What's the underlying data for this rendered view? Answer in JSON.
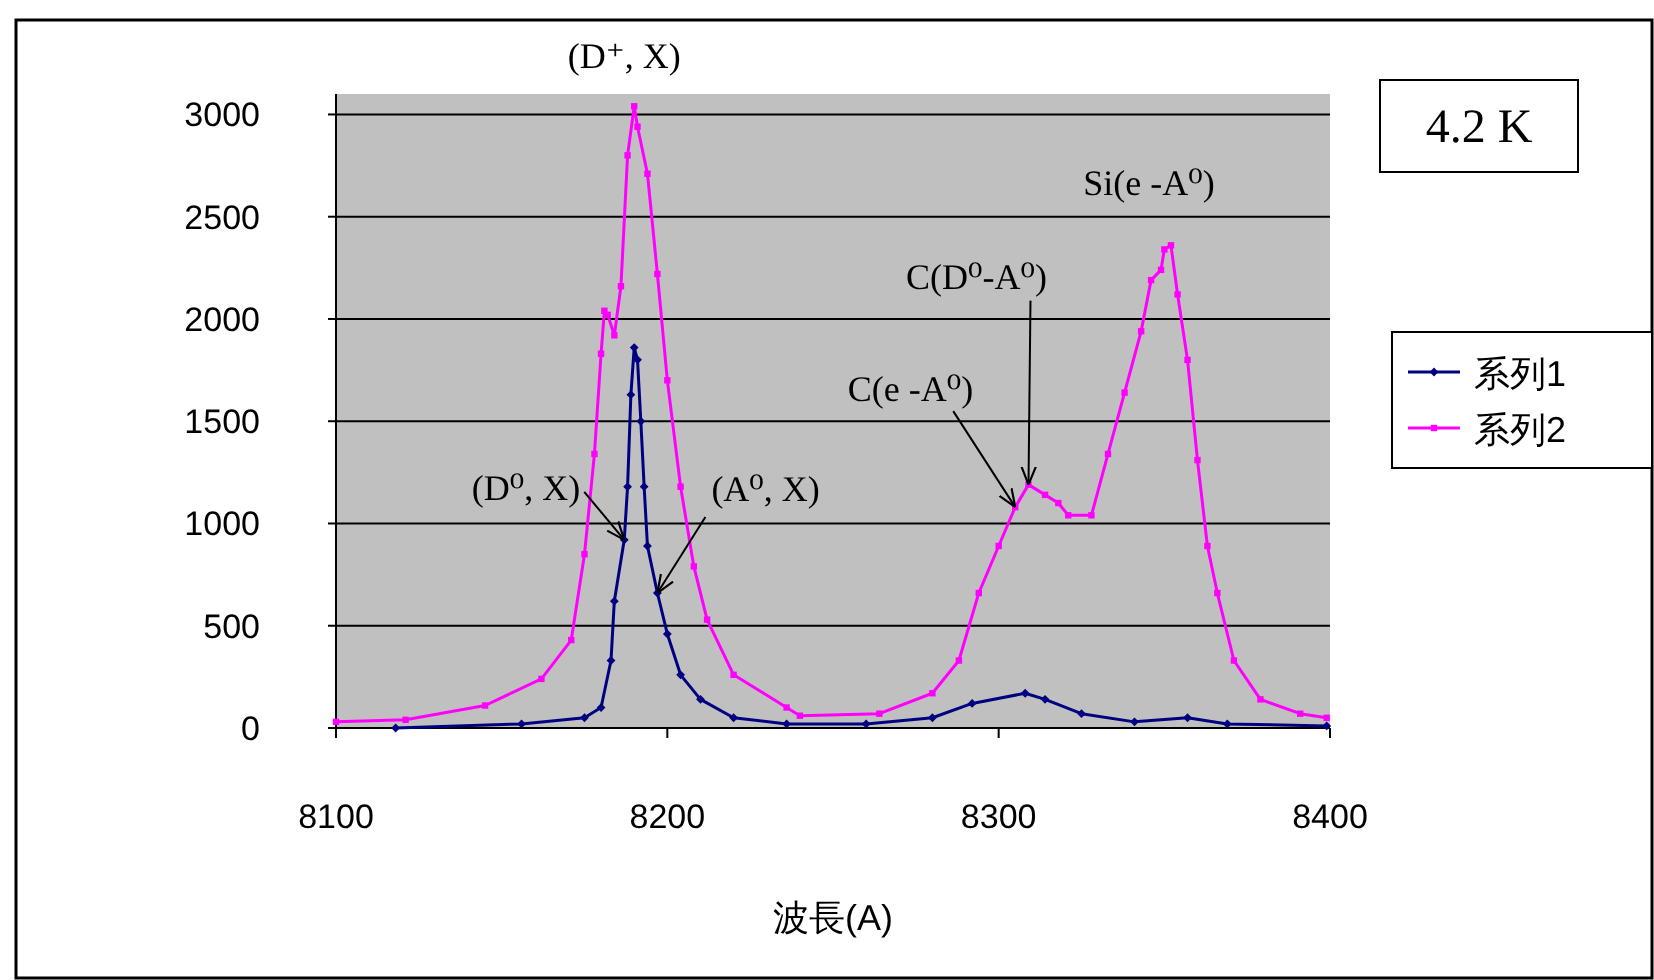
{
  "chart_data": {
    "type": "line",
    "xlabel": "波長(A)",
    "xlim": [
      8100,
      8400
    ],
    "xticks": [
      8100,
      8200,
      8300,
      8400
    ],
    "ylim": [
      0,
      3100
    ],
    "yticks": [
      0,
      500,
      1000,
      1500,
      2000,
      2500,
      3000
    ],
    "grid": "y",
    "legend": "right",
    "marker": "square",
    "line_style": "solid",
    "series": [
      {
        "name": "系列1",
        "color": "#000080",
        "marker": "diamond",
        "x": [
          8118,
          8156,
          8175,
          8180,
          8183,
          8184,
          8187,
          8188,
          8189,
          8190,
          8191,
          8192,
          8193,
          8194,
          8197,
          8200,
          8204,
          8210,
          8220,
          8236,
          8260,
          8280,
          8292,
          8308,
          8314,
          8325,
          8341,
          8357,
          8369,
          8399
        ],
        "values": [
          0,
          20,
          50,
          100,
          330,
          620,
          920,
          1180,
          1630,
          1860,
          1800,
          1500,
          1180,
          890,
          660,
          460,
          260,
          140,
          50,
          20,
          20,
          50,
          120,
          170,
          140,
          70,
          30,
          50,
          20,
          10
        ]
      },
      {
        "name": "系列2",
        "color": "#ff00ff",
        "x": [
          8100,
          8121,
          8145,
          8162,
          8171,
          8175,
          8178,
          8180,
          8181,
          8182,
          8184,
          8186,
          8188,
          8190,
          8191,
          8194,
          8197,
          8200,
          8204,
          8208,
          8212,
          8220,
          8236,
          8240,
          8264,
          8280,
          8288,
          8294,
          8300,
          8305,
          8309,
          8314,
          8318,
          8321,
          8328,
          8333,
          8338,
          8343,
          8346,
          8349,
          8350,
          8352,
          8354,
          8357,
          8360,
          8363,
          8366,
          8371,
          8379,
          8391,
          8399
        ],
        "values": [
          30,
          40,
          110,
          240,
          430,
          850,
          1340,
          1830,
          2040,
          2020,
          1920,
          2160,
          2800,
          3040,
          2940,
          2710,
          2220,
          1700,
          1180,
          790,
          530,
          260,
          100,
          60,
          70,
          170,
          330,
          660,
          890,
          1080,
          1190,
          1140,
          1100,
          1040,
          1040,
          1340,
          1640,
          1940,
          2190,
          2240,
          2340,
          2360,
          2120,
          1800,
          1310,
          890,
          660,
          330,
          140,
          70,
          50
        ]
      }
    ],
    "annotations": [
      {
        "text": "(D⁺, X)",
        "x": 8190,
        "y": 3040
      },
      {
        "text": "(D⁰, X)",
        "x": 8187,
        "y": 920
      },
      {
        "text": "(A⁰, X)",
        "x": 8197,
        "y": 660
      },
      {
        "text": "C(e -A⁰)",
        "x": 8305,
        "y": 1080
      },
      {
        "text": "C(D⁰-A⁰)",
        "x": 8309,
        "y": 1190
      },
      {
        "text": "Si(e -A⁰)",
        "x": 8352,
        "y": 2360
      },
      "4.2 K"
    ]
  }
}
